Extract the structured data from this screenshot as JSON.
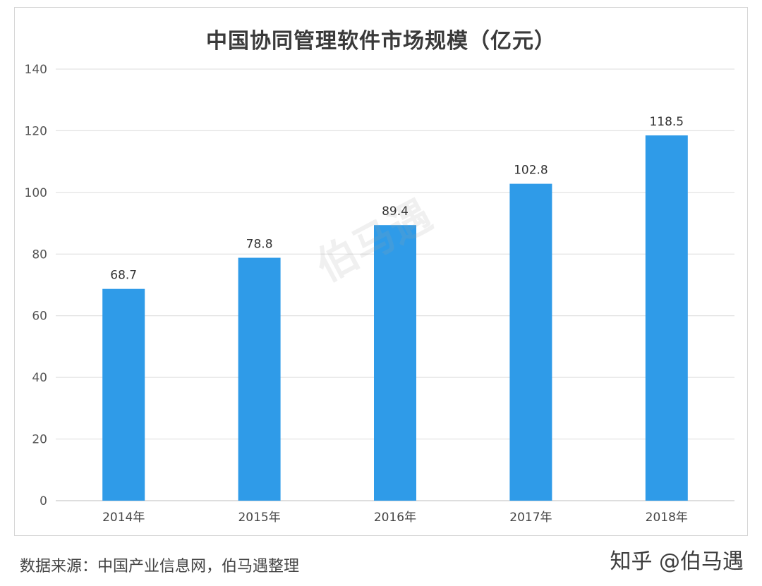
{
  "chart_data": {
    "type": "bar",
    "title": "中国协同管理软件市场规模（亿元）",
    "categories": [
      "2014年",
      "2015年",
      "2016年",
      "2017年",
      "2018年"
    ],
    "values": [
      68.7,
      78.8,
      89.4,
      102.8,
      118.5
    ],
    "value_labels": [
      "68.7",
      "78.8",
      "89.4",
      "102.8",
      "118.5"
    ],
    "xlabel": "",
    "ylabel": "",
    "ylim": [
      0,
      140
    ],
    "yticks": [
      0,
      20,
      40,
      60,
      80,
      100,
      120,
      140
    ],
    "grid": true,
    "legend": "none",
    "bar_color": "#2f9be8"
  },
  "watermark": "伯马遇",
  "footer": {
    "source": "数据来源：中国产业信息网，伯马遇整理",
    "brand": "知乎 @伯马遇"
  }
}
